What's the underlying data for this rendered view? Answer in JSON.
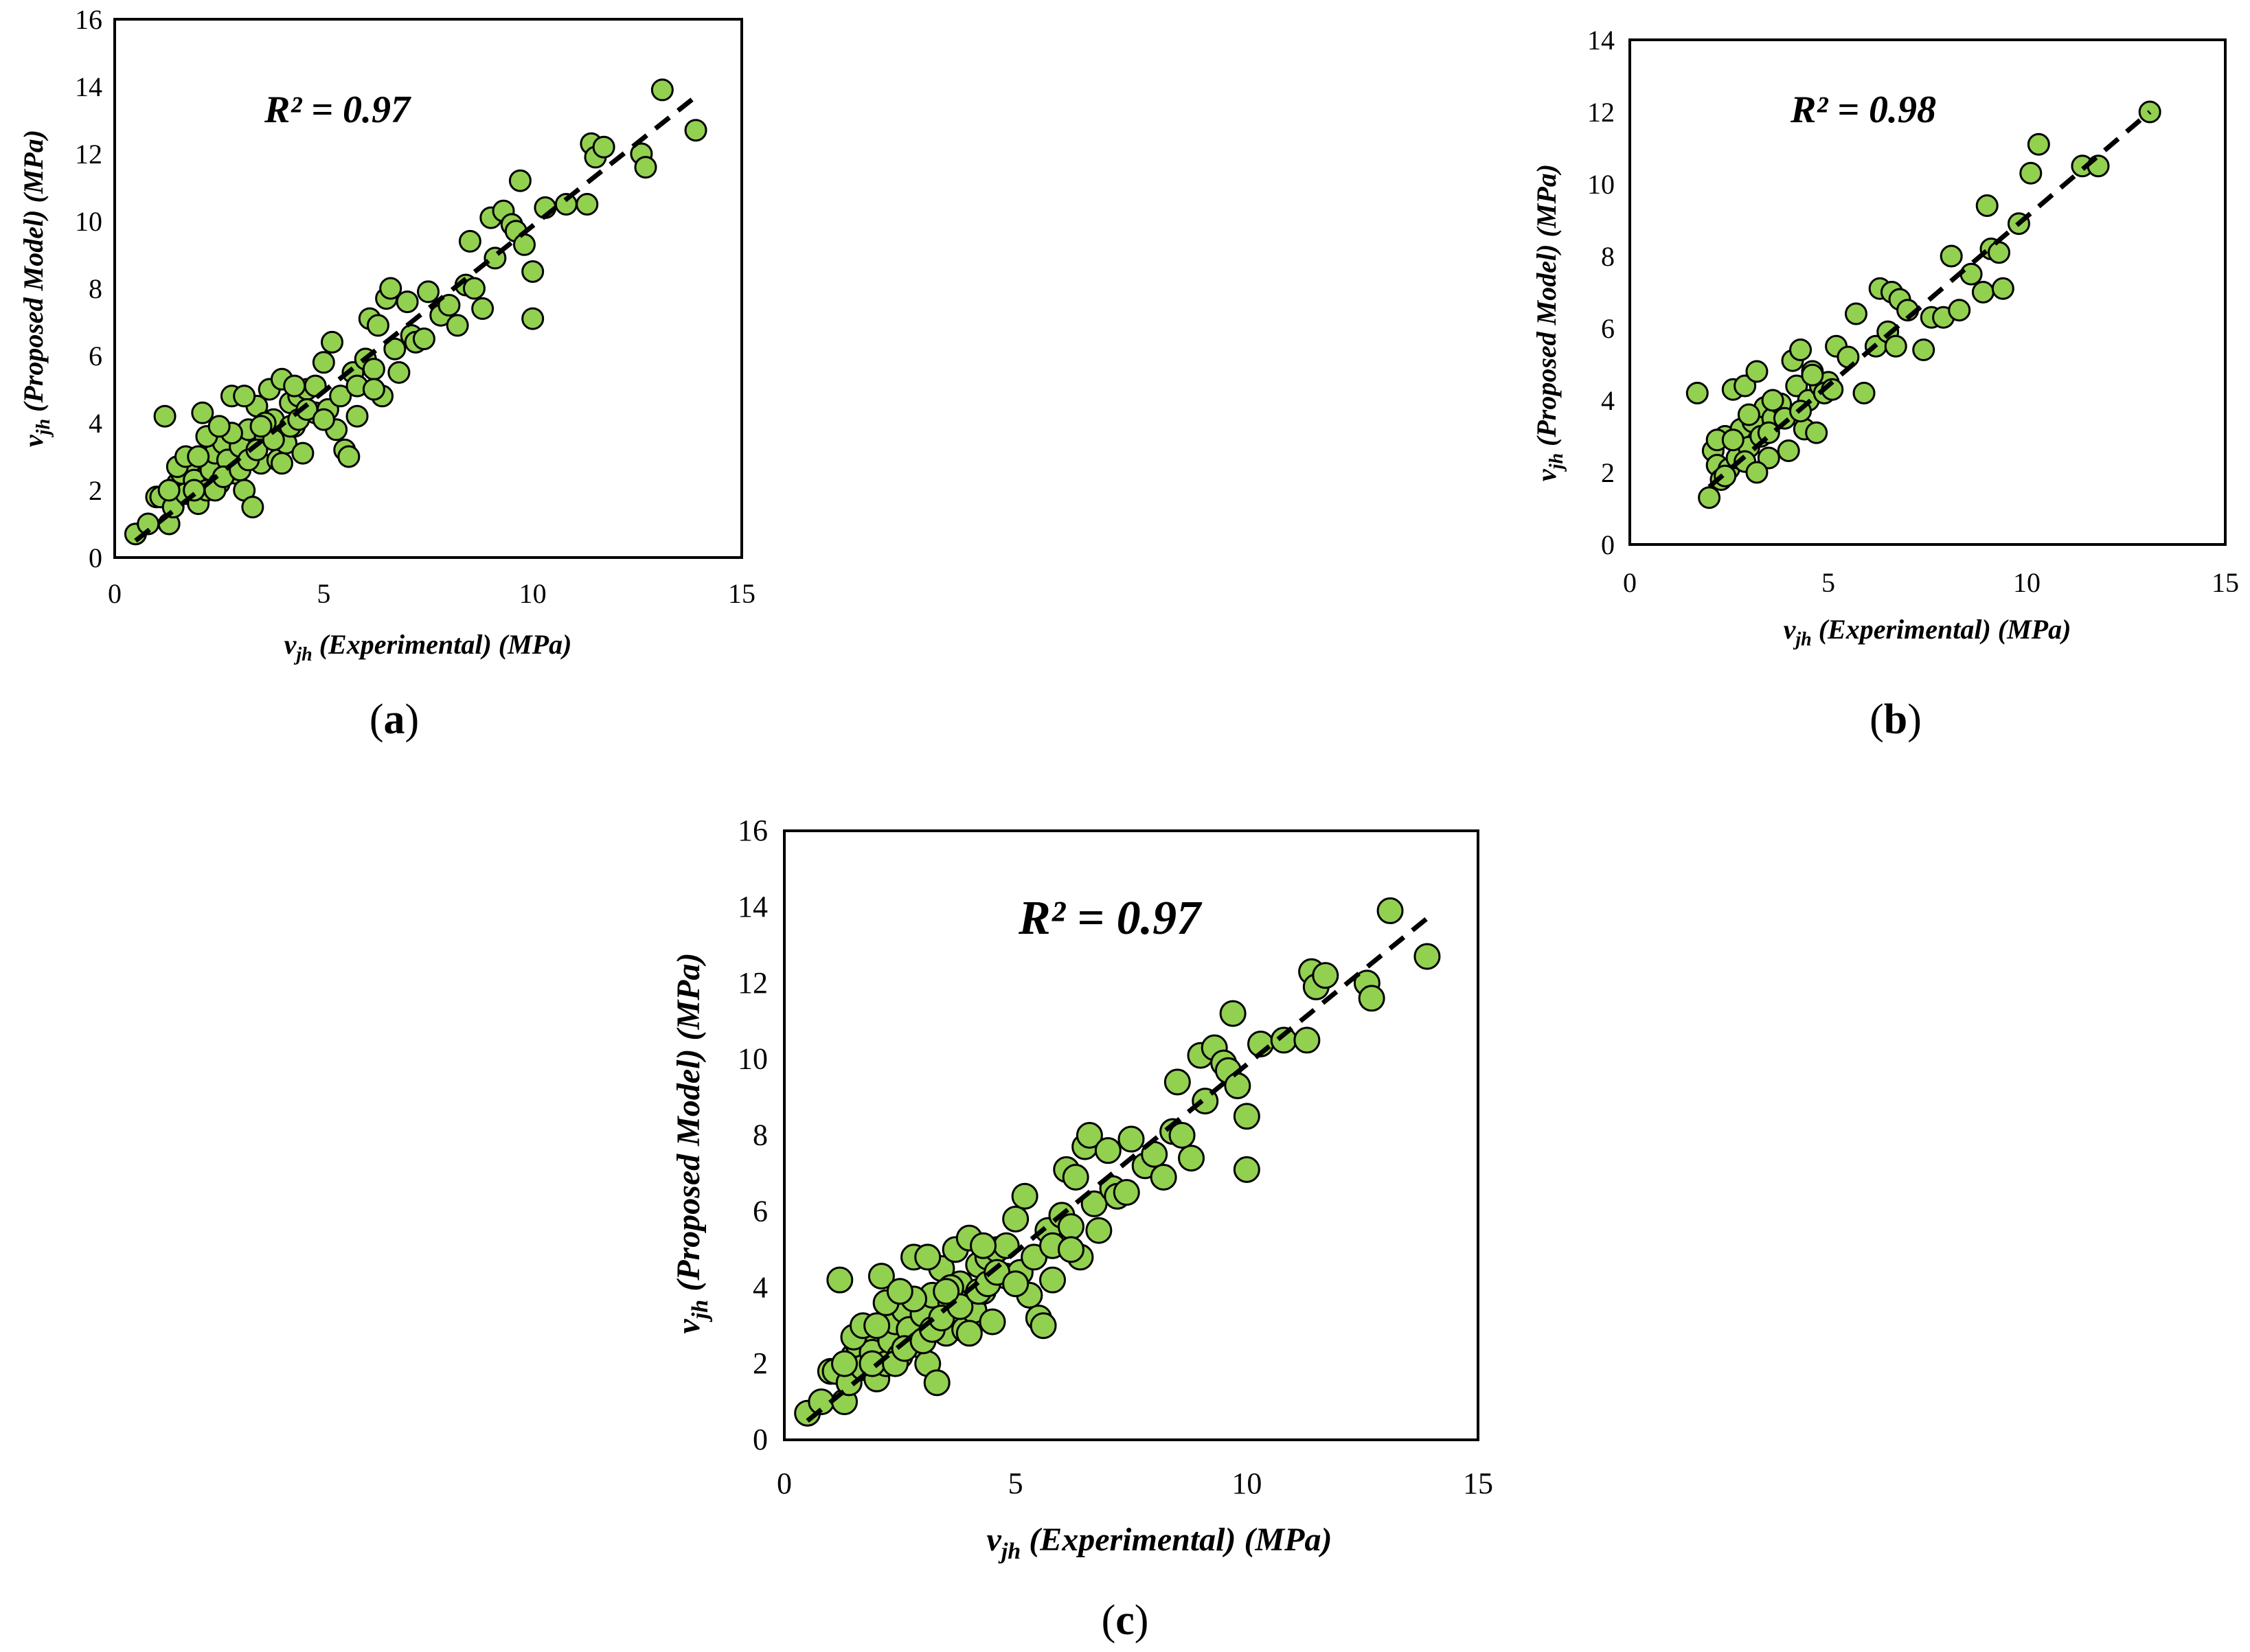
{
  "figure": {
    "point_color": "#92d050",
    "point_edge_color": "#000000",
    "fit_line_color": "#000000"
  },
  "chart_data": [
    {
      "id": "a",
      "panel_label": "a",
      "type": "scatter",
      "annotation": "R² = 0.97",
      "xlabel_symbol": "v",
      "xlabel_sub": "jh",
      "xlabel_text": " (Experimental) (MPa)",
      "ylabel_symbol": "v",
      "ylabel_sub": "jh",
      "ylabel_text": " (Proposed Model) (MPa)",
      "xlim": [
        0,
        15
      ],
      "ylim": [
        0,
        16
      ],
      "xticks": [
        0,
        5,
        10,
        15
      ],
      "yticks": [
        0,
        2,
        4,
        6,
        8,
        10,
        12,
        14,
        16
      ],
      "trendline": {
        "x": [
          0.5,
          14
        ],
        "y": [
          0.5,
          13.8
        ],
        "style": "dashed"
      },
      "points": [
        [
          0.5,
          0.7
        ],
        [
          0.8,
          1.0
        ],
        [
          1.0,
          1.8
        ],
        [
          1.1,
          1.8
        ],
        [
          1.2,
          4.2
        ],
        [
          1.3,
          1.0
        ],
        [
          1.4,
          1.5
        ],
        [
          1.5,
          2.2
        ],
        [
          1.6,
          2.5
        ],
        [
          1.7,
          1.9
        ],
        [
          1.8,
          2.8
        ],
        [
          1.9,
          2.3
        ],
        [
          2.0,
          1.6
        ],
        [
          2.1,
          4.3
        ],
        [
          2.2,
          2.0
        ],
        [
          2.3,
          2.6
        ],
        [
          2.4,
          3.1
        ],
        [
          2.5,
          2.2
        ],
        [
          2.6,
          3.4
        ],
        [
          2.7,
          2.9
        ],
        [
          2.8,
          4.8
        ],
        [
          2.9,
          2.5
        ],
        [
          3.0,
          3.3
        ],
        [
          3.1,
          2.0
        ],
        [
          3.2,
          3.8
        ],
        [
          3.3,
          1.5
        ],
        [
          3.4,
          4.5
        ],
        [
          3.5,
          2.8
        ],
        [
          3.6,
          3.6
        ],
        [
          3.7,
          5.0
        ],
        [
          3.8,
          4.1
        ],
        [
          3.9,
          2.9
        ],
        [
          4.0,
          5.3
        ],
        [
          4.1,
          3.4
        ],
        [
          4.2,
          4.6
        ],
        [
          4.3,
          3.9
        ],
        [
          4.4,
          4.8
        ],
        [
          4.5,
          3.1
        ],
        [
          4.6,
          5.0
        ],
        [
          4.8,
          4.3
        ],
        [
          5.0,
          5.8
        ],
        [
          5.1,
          4.4
        ],
        [
          5.2,
          6.4
        ],
        [
          5.3,
          3.8
        ],
        [
          5.5,
          3.2
        ],
        [
          5.6,
          3.0
        ],
        [
          5.7,
          5.5
        ],
        [
          5.8,
          4.2
        ],
        [
          6.0,
          5.9
        ],
        [
          6.1,
          7.1
        ],
        [
          6.2,
          5.6
        ],
        [
          6.3,
          6.9
        ],
        [
          6.4,
          4.8
        ],
        [
          6.5,
          7.7
        ],
        [
          6.6,
          8.0
        ],
        [
          6.7,
          6.2
        ],
        [
          6.8,
          5.5
        ],
        [
          7.0,
          7.6
        ],
        [
          7.1,
          6.6
        ],
        [
          7.2,
          6.4
        ],
        [
          7.5,
          7.9
        ],
        [
          7.8,
          7.2
        ],
        [
          8.0,
          7.5
        ],
        [
          8.2,
          6.9
        ],
        [
          8.4,
          8.1
        ],
        [
          8.5,
          9.4
        ],
        [
          8.6,
          8.0
        ],
        [
          8.8,
          7.4
        ],
        [
          9.0,
          10.1
        ],
        [
          9.1,
          8.9
        ],
        [
          9.3,
          10.3
        ],
        [
          9.5,
          9.9
        ],
        [
          9.6,
          9.7
        ],
        [
          9.7,
          11.2
        ],
        [
          9.8,
          9.3
        ],
        [
          10.0,
          8.5
        ],
        [
          10.0,
          7.1
        ],
        [
          10.3,
          10.4
        ],
        [
          10.8,
          10.5
        ],
        [
          11.3,
          10.5
        ],
        [
          11.4,
          12.3
        ],
        [
          11.5,
          11.9
        ],
        [
          11.7,
          12.2
        ],
        [
          12.6,
          12.0
        ],
        [
          12.7,
          11.6
        ],
        [
          13.1,
          13.9
        ],
        [
          13.9,
          12.7
        ],
        [
          1.3,
          2.0
        ],
        [
          1.5,
          2.7
        ],
        [
          1.7,
          3.0
        ],
        [
          1.9,
          2.0
        ],
        [
          2.0,
          3.0
        ],
        [
          2.2,
          3.6
        ],
        [
          2.4,
          2.0
        ],
        [
          2.6,
          2.4
        ],
        [
          2.8,
          3.7
        ],
        [
          3.0,
          2.6
        ],
        [
          3.2,
          2.9
        ],
        [
          3.4,
          3.2
        ],
        [
          3.6,
          4.0
        ],
        [
          3.8,
          3.5
        ],
        [
          4.0,
          2.8
        ],
        [
          4.2,
          3.9
        ],
        [
          4.4,
          4.1
        ],
        [
          4.6,
          4.4
        ],
        [
          4.8,
          5.1
        ],
        [
          5.0,
          4.1
        ],
        [
          5.4,
          4.8
        ],
        [
          5.8,
          5.1
        ],
        [
          6.2,
          5.0
        ],
        [
          7.4,
          6.5
        ],
        [
          2.5,
          3.9
        ],
        [
          3.1,
          4.8
        ],
        [
          3.5,
          3.9
        ],
        [
          4.3,
          5.1
        ]
      ]
    },
    {
      "id": "b",
      "panel_label": "b",
      "type": "scatter",
      "annotation": "R² = 0.98",
      "xlabel_symbol": "v",
      "xlabel_sub": "jh",
      "xlabel_text": " (Experimental) (MPa)",
      "ylabel_symbol": "v",
      "ylabel_sub": "jh",
      "ylabel_text": " (Proposed Model) (MPa)",
      "xlim": [
        0,
        15
      ],
      "ylim": [
        0,
        14
      ],
      "xticks": [
        0,
        5,
        10,
        15
      ],
      "yticks": [
        0,
        2,
        4,
        6,
        8,
        10,
        12,
        14
      ],
      "trendline": {
        "x": [
          2,
          13.1
        ],
        "y": [
          1.6,
          12.0
        ],
        "style": "dashed"
      },
      "points": [
        [
          1.7,
          4.2
        ],
        [
          2.0,
          1.3
        ],
        [
          2.1,
          2.6
        ],
        [
          2.2,
          2.2
        ],
        [
          2.3,
          1.8
        ],
        [
          2.4,
          3.0
        ],
        [
          2.5,
          2.1
        ],
        [
          2.6,
          4.3
        ],
        [
          2.7,
          2.4
        ],
        [
          2.8,
          3.2
        ],
        [
          2.9,
          4.4
        ],
        [
          3.0,
          2.7
        ],
        [
          3.1,
          3.4
        ],
        [
          3.2,
          4.8
        ],
        [
          3.3,
          3.0
        ],
        [
          3.4,
          3.8
        ],
        [
          3.5,
          2.4
        ],
        [
          3.6,
          3.5
        ],
        [
          3.8,
          3.9
        ],
        [
          4.0,
          2.6
        ],
        [
          4.1,
          5.1
        ],
        [
          4.2,
          4.4
        ],
        [
          4.3,
          5.4
        ],
        [
          4.4,
          3.2
        ],
        [
          4.5,
          4.0
        ],
        [
          4.6,
          4.8
        ],
        [
          4.7,
          3.1
        ],
        [
          4.8,
          4.4
        ],
        [
          5.0,
          4.5
        ],
        [
          5.2,
          5.5
        ],
        [
          5.5,
          5.2
        ],
        [
          5.7,
          6.4
        ],
        [
          5.9,
          4.2
        ],
        [
          6.2,
          5.5
        ],
        [
          6.3,
          7.1
        ],
        [
          6.5,
          5.9
        ],
        [
          6.6,
          7.0
        ],
        [
          6.7,
          5.5
        ],
        [
          6.8,
          6.8
        ],
        [
          7.0,
          6.5
        ],
        [
          7.4,
          5.4
        ],
        [
          7.6,
          6.3
        ],
        [
          7.9,
          6.3
        ],
        [
          8.1,
          8.0
        ],
        [
          8.3,
          6.5
        ],
        [
          8.6,
          7.5
        ],
        [
          8.9,
          7.0
        ],
        [
          9.0,
          9.4
        ],
        [
          9.1,
          8.2
        ],
        [
          9.3,
          8.1
        ],
        [
          9.4,
          7.1
        ],
        [
          9.8,
          8.9
        ],
        [
          10.1,
          10.3
        ],
        [
          10.3,
          11.1
        ],
        [
          11.4,
          10.5
        ],
        [
          11.8,
          10.5
        ],
        [
          13.1,
          12.0
        ],
        [
          2.2,
          2.9
        ],
        [
          2.6,
          2.9
        ],
        [
          2.9,
          2.3
        ],
        [
          3.2,
          2.0
        ],
        [
          3.5,
          3.1
        ],
        [
          3.9,
          3.5
        ],
        [
          4.3,
          3.7
        ],
        [
          4.9,
          4.2
        ],
        [
          2.4,
          1.9
        ],
        [
          3.0,
          3.6
        ],
        [
          3.6,
          4.0
        ],
        [
          4.6,
          4.7
        ],
        [
          5.1,
          4.3
        ]
      ]
    },
    {
      "id": "c",
      "panel_label": "c",
      "type": "scatter",
      "annotation": "R² = 0.97",
      "xlabel_symbol": "v",
      "xlabel_sub": "jh",
      "xlabel_text": " (Experimental) (MPa)",
      "ylabel_symbol": "v",
      "ylabel_sub": "jh",
      "ylabel_text": " (Proposed Model) (MPa)",
      "xlim": [
        0,
        15
      ],
      "ylim": [
        0,
        16
      ],
      "xticks": [
        0,
        5,
        10,
        15
      ],
      "yticks": [
        0,
        2,
        4,
        6,
        8,
        10,
        12,
        14,
        16
      ],
      "trendline": {
        "x": [
          0.5,
          14
        ],
        "y": [
          0.5,
          13.8
        ],
        "style": "dashed"
      },
      "points": [
        [
          0.5,
          0.7
        ],
        [
          0.8,
          1.0
        ],
        [
          1.0,
          1.8
        ],
        [
          1.1,
          1.8
        ],
        [
          1.2,
          4.2
        ],
        [
          1.3,
          1.0
        ],
        [
          1.4,
          1.5
        ],
        [
          1.5,
          2.2
        ],
        [
          1.6,
          2.5
        ],
        [
          1.7,
          1.9
        ],
        [
          1.8,
          2.8
        ],
        [
          1.9,
          2.3
        ],
        [
          2.0,
          1.6
        ],
        [
          2.1,
          4.3
        ],
        [
          2.2,
          2.0
        ],
        [
          2.3,
          2.6
        ],
        [
          2.4,
          3.1
        ],
        [
          2.5,
          2.2
        ],
        [
          2.6,
          3.4
        ],
        [
          2.7,
          2.9
        ],
        [
          2.8,
          4.8
        ],
        [
          2.9,
          2.5
        ],
        [
          3.0,
          3.3
        ],
        [
          3.1,
          2.0
        ],
        [
          3.2,
          3.8
        ],
        [
          3.3,
          1.5
        ],
        [
          3.4,
          4.5
        ],
        [
          3.5,
          2.8
        ],
        [
          3.6,
          3.6
        ],
        [
          3.7,
          5.0
        ],
        [
          3.8,
          4.1
        ],
        [
          3.9,
          2.9
        ],
        [
          4.0,
          5.3
        ],
        [
          4.1,
          3.4
        ],
        [
          4.2,
          4.6
        ],
        [
          4.3,
          3.9
        ],
        [
          4.4,
          4.8
        ],
        [
          4.5,
          3.1
        ],
        [
          4.6,
          5.0
        ],
        [
          4.8,
          4.3
        ],
        [
          5.0,
          5.8
        ],
        [
          5.1,
          4.4
        ],
        [
          5.2,
          6.4
        ],
        [
          5.3,
          3.8
        ],
        [
          5.5,
          3.2
        ],
        [
          5.6,
          3.0
        ],
        [
          5.7,
          5.5
        ],
        [
          5.8,
          4.2
        ],
        [
          6.0,
          5.9
        ],
        [
          6.1,
          7.1
        ],
        [
          6.2,
          5.6
        ],
        [
          6.3,
          6.9
        ],
        [
          6.4,
          4.8
        ],
        [
          6.5,
          7.7
        ],
        [
          6.6,
          8.0
        ],
        [
          6.7,
          6.2
        ],
        [
          6.8,
          5.5
        ],
        [
          7.0,
          7.6
        ],
        [
          7.1,
          6.6
        ],
        [
          7.2,
          6.4
        ],
        [
          7.5,
          7.9
        ],
        [
          7.8,
          7.2
        ],
        [
          8.0,
          7.5
        ],
        [
          8.2,
          6.9
        ],
        [
          8.4,
          8.1
        ],
        [
          8.5,
          9.4
        ],
        [
          8.6,
          8.0
        ],
        [
          8.8,
          7.4
        ],
        [
          9.0,
          10.1
        ],
        [
          9.1,
          8.9
        ],
        [
          9.3,
          10.3
        ],
        [
          9.5,
          9.9
        ],
        [
          9.6,
          9.7
        ],
        [
          9.7,
          11.2
        ],
        [
          9.8,
          9.3
        ],
        [
          10.0,
          8.5
        ],
        [
          10.0,
          7.1
        ],
        [
          10.3,
          10.4
        ],
        [
          10.8,
          10.5
        ],
        [
          11.3,
          10.5
        ],
        [
          11.4,
          12.3
        ],
        [
          11.5,
          11.9
        ],
        [
          11.7,
          12.2
        ],
        [
          12.6,
          12.0
        ],
        [
          12.7,
          11.6
        ],
        [
          13.1,
          13.9
        ],
        [
          13.9,
          12.7
        ],
        [
          1.3,
          2.0
        ],
        [
          1.5,
          2.7
        ],
        [
          1.7,
          3.0
        ],
        [
          1.9,
          2.0
        ],
        [
          2.0,
          3.0
        ],
        [
          2.2,
          3.6
        ],
        [
          2.4,
          2.0
        ],
        [
          2.6,
          2.4
        ],
        [
          2.8,
          3.7
        ],
        [
          3.0,
          2.6
        ],
        [
          3.2,
          2.9
        ],
        [
          3.4,
          3.2
        ],
        [
          3.6,
          4.0
        ],
        [
          3.8,
          3.5
        ],
        [
          4.0,
          2.8
        ],
        [
          4.2,
          3.9
        ],
        [
          4.4,
          4.1
        ],
        [
          4.6,
          4.4
        ],
        [
          4.8,
          5.1
        ],
        [
          5.0,
          4.1
        ],
        [
          5.4,
          4.8
        ],
        [
          5.8,
          5.1
        ],
        [
          6.2,
          5.0
        ],
        [
          7.4,
          6.5
        ],
        [
          2.5,
          3.9
        ],
        [
          3.1,
          4.8
        ],
        [
          3.5,
          3.9
        ],
        [
          4.3,
          5.1
        ]
      ]
    }
  ]
}
